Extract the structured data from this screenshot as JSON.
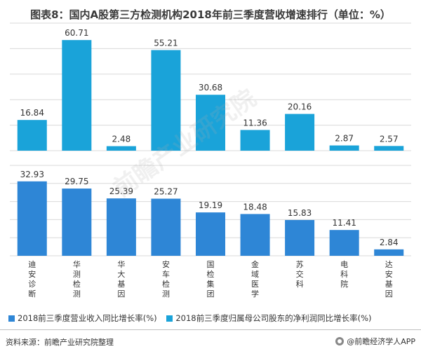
{
  "title": "图表8：国内A股第三方检测机构2018年前三季度营收增速排行（单位：%）",
  "chart_data": [
    {
      "type": "bar",
      "name": "2018前三季度归属母公司股东的净利润同比增长率(%)",
      "color": "#1aa3d9",
      "categories": [
        "迪安诊断",
        "华测检测",
        "华大基因",
        "安车检测",
        "国检集团",
        "金域医学",
        "苏交科",
        "电科院",
        "达安基因"
      ],
      "values": [
        16.84,
        60.71,
        2.48,
        55.21,
        30.68,
        11.36,
        20.16,
        2.87,
        2.57
      ],
      "labels": [
        "16.84",
        "60.71",
        "2.48",
        "55.21",
        "30.68",
        "11.36",
        "20.16",
        "2.87",
        "2.57"
      ],
      "ylim": [
        0,
        70
      ],
      "grid": true
    },
    {
      "type": "bar",
      "name": "2018前三季度营业收入同比增长率(%)",
      "color": "#2e86d6",
      "categories": [
        "迪安诊断",
        "华测检测",
        "华大基因",
        "安车检测",
        "国检集团",
        "金域医学",
        "苏交科",
        "电科院",
        "达安基因"
      ],
      "values": [
        32.93,
        29.75,
        25.39,
        25.27,
        19.19,
        18.48,
        15.83,
        11.41,
        2.84
      ],
      "labels": [
        "32.93",
        "29.75",
        "25.39",
        "25.27",
        "19.19",
        "18.48",
        "15.83",
        "11.41",
        "2.84"
      ],
      "ylim": [
        0,
        40
      ],
      "grid": true
    }
  ],
  "legend": {
    "revenue": "2018前三季度营业收入同比增长率(%)",
    "profit": "2018前三季度归属母公司股东的净利润同比增长率(%)"
  },
  "source": "资料来源：前瞻产业研究院整理",
  "brand": "@前瞻经济学人APP",
  "watermark": "前瞻产业研究院",
  "colors": {
    "revenue": "#2e86d6",
    "profit": "#1aa3d9",
    "grid": "#d9d9d9"
  }
}
